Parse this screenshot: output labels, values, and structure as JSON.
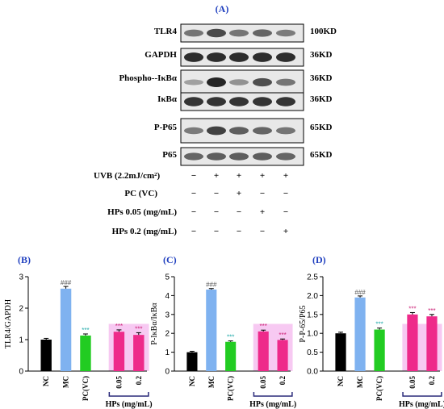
{
  "colors": {
    "panel_label": "#1f3fbf",
    "nc": "#000000",
    "mc": "#7fb2f0",
    "pc": "#22cc22",
    "hps": "#ee2a8a",
    "hps_bg": "#f7c9f2",
    "sig_mc": "#555555",
    "sig_pc": "#22aaaa",
    "sig_hps": "#cc2277",
    "bracket": "#2a2a7a",
    "blot_bg": "#e8e8e8",
    "band": "#1a1a1a"
  },
  "western_blot": {
    "label": "(A)",
    "rows": [
      {
        "protein": "TLR4",
        "size": "100KD",
        "intensity": [
          0.45,
          0.75,
          0.45,
          0.55,
          0.4
        ]
      },
      {
        "protein": "GAPDH",
        "size": "36KD",
        "intensity": [
          0.95,
          0.95,
          0.95,
          0.95,
          0.95
        ]
      },
      {
        "protein": "Phospho--IκBα",
        "size": "36KD",
        "intensity": [
          0.15,
          1.0,
          0.25,
          0.7,
          0.45
        ]
      },
      {
        "protein": "IκBα",
        "size": "36KD",
        "intensity": [
          0.9,
          0.9,
          0.9,
          0.9,
          0.9
        ]
      },
      {
        "protein": "P-P65",
        "size": "65KD",
        "intensity": [
          0.4,
          0.8,
          0.6,
          0.55,
          0.45
        ]
      },
      {
        "protein": "P65",
        "size": "65KD",
        "intensity": [
          0.55,
          0.6,
          0.6,
          0.6,
          0.55
        ]
      }
    ],
    "treatments": [
      {
        "label": "UVB  (2.2mJ/cm²)",
        "marks": [
          "−",
          "+",
          "+",
          "+",
          "+"
        ]
      },
      {
        "label": "PC (VC)",
        "marks": [
          "−",
          "−",
          "+",
          "−",
          "−"
        ]
      },
      {
        "label": "HPs 0.05 (mg/mL)",
        "marks": [
          "−",
          "−",
          "−",
          "+",
          "−"
        ]
      },
      {
        "label": "HPs 0.2 (mg/mL)",
        "marks": [
          "−",
          "−",
          "−",
          "−",
          "+"
        ]
      }
    ]
  },
  "chart_data": [
    {
      "panel": "(B)",
      "type": "bar",
      "ylabel": "TLR4/GAPDH",
      "ylim": [
        0,
        3
      ],
      "yticks": [
        "0",
        "1",
        "2",
        "3"
      ],
      "categories": [
        "NC",
        "MC",
        "PC(VC)",
        "0.05",
        "0.2"
      ],
      "values": [
        1.0,
        2.62,
        1.13,
        1.25,
        1.15
      ],
      "errors": [
        0.04,
        0.07,
        0.05,
        0.06,
        0.07
      ],
      "significance": [
        "",
        "###",
        "***",
        "***",
        "***"
      ],
      "group_label": "HPs (mg/mL)"
    },
    {
      "panel": "(C)",
      "type": "bar",
      "ylabel": "P-IκBα/IκBα",
      "ylim": [
        0,
        5
      ],
      "yticks": [
        "0",
        "1",
        "2",
        "3",
        "4",
        "5"
      ],
      "categories": [
        "NC",
        "MC",
        "PC(VC)",
        "0.05",
        "0.2"
      ],
      "values": [
        1.0,
        4.32,
        1.55,
        2.1,
        1.65
      ],
      "errors": [
        0.05,
        0.05,
        0.05,
        0.07,
        0.05
      ],
      "significance": [
        "",
        "###",
        "***",
        "***",
        "***"
      ],
      "group_label": "HPs (mg/mL)"
    },
    {
      "panel": "(D)",
      "type": "bar",
      "ylabel": "P-P-65/P65",
      "ylim": [
        0,
        2.5
      ],
      "yticks": [
        "0.0",
        "0.5",
        "1.0",
        "1.5",
        "2.0",
        "2.5"
      ],
      "categories": [
        "NC",
        "MC",
        "PC(VC)",
        "0.05",
        "0.2"
      ],
      "values": [
        1.0,
        1.95,
        1.1,
        1.5,
        1.45
      ],
      "errors": [
        0.03,
        0.04,
        0.04,
        0.05,
        0.05
      ],
      "significance": [
        "",
        "###",
        "***",
        "***",
        "***"
      ],
      "group_label": "HPs (mg/mL)"
    }
  ]
}
